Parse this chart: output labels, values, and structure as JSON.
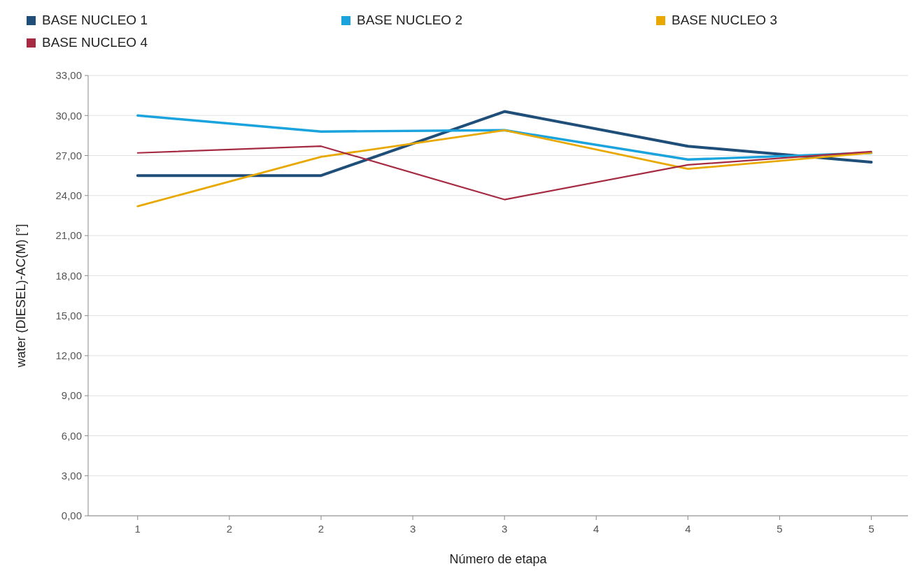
{
  "chart_data": {
    "type": "line",
    "xlabel": "Número de etapa",
    "ylabel": "water (DIESEL)-AC(M) [°]",
    "x": [
      1,
      2,
      3,
      4,
      5
    ],
    "xlim": [
      0.73,
      5.2
    ],
    "xticks": [
      {
        "value": 1,
        "label": "1"
      },
      {
        "value": 1.5,
        "label": "2"
      },
      {
        "value": 2,
        "label": "2"
      },
      {
        "value": 2.5,
        "label": "3"
      },
      {
        "value": 3,
        "label": "3"
      },
      {
        "value": 3.5,
        "label": "4"
      },
      {
        "value": 4,
        "label": "4"
      },
      {
        "value": 4.5,
        "label": "5"
      },
      {
        "value": 5,
        "label": "5"
      }
    ],
    "ylim": [
      0,
      33
    ],
    "yticks": [
      {
        "value": 0,
        "label": "0,00"
      },
      {
        "value": 3,
        "label": "3,00"
      },
      {
        "value": 6,
        "label": "6,00"
      },
      {
        "value": 9,
        "label": "9,00"
      },
      {
        "value": 12,
        "label": "12,00"
      },
      {
        "value": 15,
        "label": "15,00"
      },
      {
        "value": 18,
        "label": "18,00"
      },
      {
        "value": 21,
        "label": "21,00"
      },
      {
        "value": 24,
        "label": "24,00"
      },
      {
        "value": 27,
        "label": "27,00"
      },
      {
        "value": 30,
        "label": "30,00"
      },
      {
        "value": 33,
        "label": "33,00"
      }
    ],
    "grid": "y",
    "legend": "top",
    "marker": "none",
    "line_style": "solid",
    "series": [
      {
        "name": "BASE NUCLEO 1",
        "color": "#1f4e79",
        "values": [
          25.5,
          25.5,
          30.3,
          27.7,
          26.5
        ]
      },
      {
        "name": "BASE NUCLEO 2",
        "color": "#1aa3dc",
        "values": [
          30.0,
          28.8,
          28.9,
          26.7,
          27.2
        ]
      },
      {
        "name": "BASE NUCLEO 3",
        "color": "#e8a800",
        "values": [
          23.2,
          26.9,
          28.9,
          26.0,
          27.2
        ]
      },
      {
        "name": "BASE NUCLEO 4",
        "color": "#a52a42",
        "values": [
          27.2,
          27.7,
          23.7,
          26.3,
          27.3
        ]
      }
    ]
  }
}
